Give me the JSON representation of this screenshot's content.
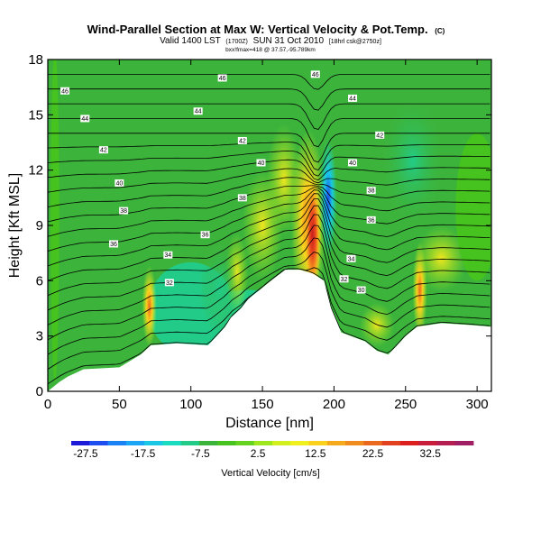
{
  "header": {
    "title": "Wind-Parallel Section at Max W: Vertical Velocity & Pot.Temp.",
    "title_tag": "(C)",
    "subtitle": "Valid 1400 LST",
    "subtitle_small": "(1700Z)",
    "subtitle_date": "SUN 31 Oct 2010",
    "subtitle_tail": "[18hrl csk@2750z]",
    "info_line": "bxx!fmax=418 @ 37.57,-95.789km"
  },
  "chart_data": {
    "type": "heatmap",
    "xlabel": "Distance [nm]",
    "ylabel": "Height [Kft MSL]",
    "xlim": [
      0,
      310
    ],
    "ylim": [
      0,
      18
    ],
    "x_ticks": [
      "0",
      "50",
      "100",
      "150",
      "200",
      "250",
      "300"
    ],
    "y_ticks": [
      "0",
      "3",
      "6",
      "9",
      "12",
      "15",
      "18"
    ],
    "colorbar": {
      "label": "Vertical Velocity [cm/s]",
      "range": [
        -30,
        40
      ],
      "tick_labels": [
        "-27.5",
        "-17.5",
        "-7.5",
        "2.5",
        "12.5",
        "22.5",
        "32.5"
      ],
      "colors": [
        "#1a1ad8",
        "#1e4ef0",
        "#1a82f5",
        "#1aa5f5",
        "#1ac8e6",
        "#1adcc0",
        "#22cc88",
        "#3cb43c",
        "#46c31e",
        "#64d21e",
        "#9ee61e",
        "#d2f01e",
        "#f0f01e",
        "#fad21e",
        "#f5aa1e",
        "#f08c1e",
        "#eb691e",
        "#e1411e",
        "#dc1e1e",
        "#c81e3c",
        "#b41e50",
        "#a01e64"
      ]
    },
    "terrain_kft": [
      [
        0,
        0
      ],
      [
        8,
        0.5
      ],
      [
        14,
        0.8
      ],
      [
        25,
        1.2
      ],
      [
        50,
        1.3
      ],
      [
        65,
        2.0
      ],
      [
        72,
        2.5
      ],
      [
        90,
        2.6
      ],
      [
        112,
        2.5
      ],
      [
        118,
        3.0
      ],
      [
        124,
        3.5
      ],
      [
        128,
        4.0
      ],
      [
        135,
        4.5
      ],
      [
        140,
        5.0
      ],
      [
        148,
        5.5
      ],
      [
        156,
        6.0
      ],
      [
        166,
        6.6
      ],
      [
        176,
        6.6
      ],
      [
        185,
        6.4
      ],
      [
        193,
        6.0
      ],
      [
        198,
        4.5
      ],
      [
        205,
        3.2
      ],
      [
        222,
        2.7
      ],
      [
        230,
        2.2
      ],
      [
        238,
        2.0
      ],
      [
        243,
        2.4
      ],
      [
        250,
        3.0
      ],
      [
        258,
        3.5
      ],
      [
        275,
        3.7
      ],
      [
        295,
        3.6
      ],
      [
        310,
        3.5
      ]
    ],
    "contour_labels": [
      {
        "x": 187,
        "y": 17.2,
        "text": "46"
      },
      {
        "x": 12,
        "y": 16.3,
        "text": "46"
      },
      {
        "x": 122,
        "y": 17.0,
        "text": "46"
      },
      {
        "x": 26,
        "y": 14.8,
        "text": "44"
      },
      {
        "x": 105,
        "y": 15.2,
        "text": "44"
      },
      {
        "x": 213,
        "y": 15.9,
        "text": "44"
      },
      {
        "x": 136,
        "y": 13.6,
        "text": "42"
      },
      {
        "x": 39,
        "y": 13.1,
        "text": "42"
      },
      {
        "x": 232,
        "y": 13.9,
        "text": "42"
      },
      {
        "x": 149,
        "y": 12.4,
        "text": "40"
      },
      {
        "x": 50,
        "y": 11.3,
        "text": "40"
      },
      {
        "x": 213,
        "y": 12.4,
        "text": "40"
      },
      {
        "x": 136,
        "y": 10.5,
        "text": "38"
      },
      {
        "x": 53,
        "y": 9.8,
        "text": "38"
      },
      {
        "x": 226,
        "y": 10.9,
        "text": "38"
      },
      {
        "x": 110,
        "y": 8.5,
        "text": "36"
      },
      {
        "x": 46,
        "y": 8.0,
        "text": "36"
      },
      {
        "x": 226,
        "y": 9.3,
        "text": "36"
      },
      {
        "x": 84,
        "y": 7.4,
        "text": "34"
      },
      {
        "x": 212,
        "y": 7.2,
        "text": "34"
      },
      {
        "x": 85,
        "y": 5.9,
        "text": "32"
      },
      {
        "x": 207,
        "y": 6.1,
        "text": "32"
      },
      {
        "x": 219,
        "y": 5.5,
        "text": "30"
      }
    ]
  }
}
